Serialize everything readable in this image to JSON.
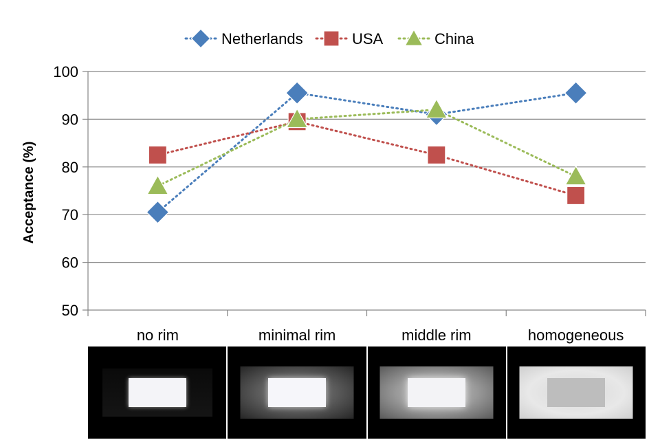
{
  "chart_data": {
    "type": "line",
    "categories": [
      "no rim",
      "minimal rim",
      "middle rim",
      "homogeneous"
    ],
    "ylabel": "Acceptance (%)",
    "xlabel": "",
    "ylim": [
      50,
      100
    ],
    "yticks": [
      50,
      60,
      70,
      80,
      90,
      100
    ],
    "grid": true,
    "legend_position": "top",
    "series": [
      {
        "name": "Netherlands",
        "values": [
          70.5,
          95.5,
          91,
          95.5
        ],
        "color": "#4a7ebb",
        "marker": "diamond"
      },
      {
        "name": "USA",
        "values": [
          82.5,
          89.5,
          82.5,
          74
        ],
        "color": "#c0504d",
        "marker": "square"
      },
      {
        "name": "China",
        "values": [
          76,
          90,
          92,
          78
        ],
        "color": "#9bbb59",
        "marker": "triangle"
      }
    ]
  },
  "thumbnails": [
    {
      "name": "no rim",
      "rim_level": 0
    },
    {
      "name": "minimal rim",
      "rim_level": 0.35
    },
    {
      "name": "middle rim",
      "rim_level": 0.6
    },
    {
      "name": "homogeneous",
      "rim_level": 1
    }
  ]
}
